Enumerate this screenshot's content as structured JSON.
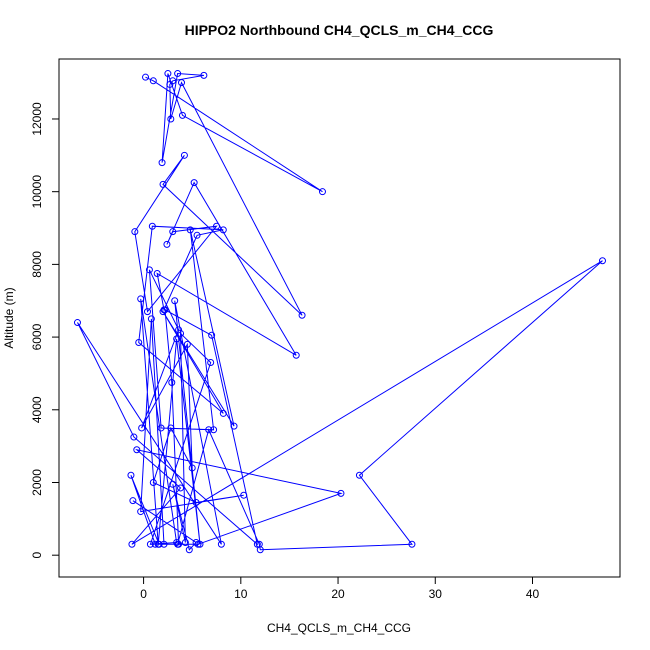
{
  "chart_data": {
    "type": "line",
    "title": "HIPPO2 Northbound CH4_QCLS_m_CH4_CCG",
    "xlabel": "CH4_QCLS_m_CH4_CCG",
    "ylabel": "Altitude (m)",
    "xlim": [
      -8.7,
      49
    ],
    "ylim": [
      -600,
      13650
    ],
    "xticks": [
      0,
      10,
      20,
      30,
      40
    ],
    "yticks": [
      0,
      2000,
      4000,
      6000,
      8000,
      10000,
      12000
    ],
    "grid": false,
    "colors": {
      "series": "#0000ff"
    },
    "series": [
      {
        "markers": "open-circle",
        "x": [
          0.2,
          1.0,
          18.4,
          4.0,
          2.5,
          1.9,
          3.5,
          6.2,
          3.0,
          2.7,
          2.8,
          3.9,
          16.3,
          2.0,
          4.2,
          -0.9,
          0.4,
          7.5,
          3.0,
          2.4,
          5.2,
          15.7,
          1.4,
          2.1,
          5.5,
          8.2,
          0.9,
          -0.5,
          8.2,
          2.0,
          9.3,
          4.8,
          7.2,
          1.8,
          0.6,
          3.6,
          -0.2,
          4.5,
          5.0,
          2.8,
          1.0,
          5.4,
          10.3,
          -0.3,
          0.8,
          2.1,
          3.5,
          6.7,
          11.9,
          12.0,
          27.6,
          22.2,
          47.2,
          -1.2,
          3.8,
          -0.7,
          20.3,
          5.6,
          1.2,
          -1.3,
          1.6,
          3.6,
          2.9,
          2.2,
          7.0,
          11.7,
          -1.0,
          -6.8,
          8.0,
          3.2,
          5.8,
          3.4,
          1.5,
          -0.3,
          3.4,
          0.7,
          6.9,
          3.8,
          4.3,
          3.0,
          4.7,
          5.4,
          -1.1
        ],
        "y": [
          13150,
          13050,
          10000,
          12100,
          13250,
          10800,
          13250,
          13200,
          13050,
          12950,
          12000,
          13000,
          6600,
          10200,
          11000,
          8900,
          6700,
          9050,
          8900,
          8550,
          10250,
          5500,
          7750,
          6750,
          8800,
          8950,
          9050,
          5850,
          3900,
          6700,
          3550,
          8950,
          3450,
          3500,
          7850,
          6200,
          3500,
          5800,
          2400,
          3500,
          2000,
          1450,
          1650,
          1200,
          6500,
          300,
          300,
          3450,
          300,
          150,
          300,
          2200,
          8100,
          300,
          1850,
          2900,
          1700,
          300,
          300,
          2200,
          300,
          300,
          4750,
          6750,
          6050,
          300,
          3250,
          6400,
          300,
          7000,
          300,
          5950,
          300,
          7050,
          350,
          300,
          5300,
          6100,
          350,
          1950,
          150,
          350,
          1500
        ]
      }
    ]
  }
}
